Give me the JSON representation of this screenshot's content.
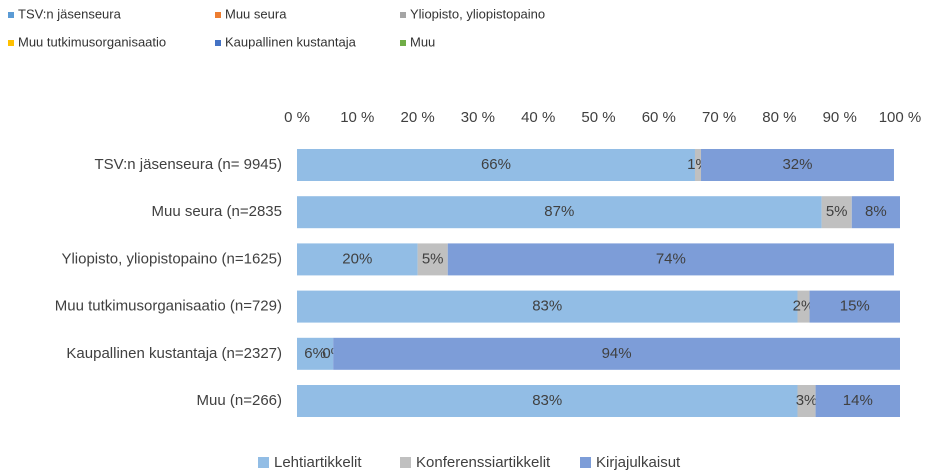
{
  "chart_data": {
    "type": "stacked_barh",
    "extra_legend": [
      {
        "name": "TSV:n jäsenseura",
        "color": "#5b9bd5"
      },
      {
        "name": "Muu seura",
        "color": "#ed7d31"
      },
      {
        "name": "Yliopisto, yliopistopaino",
        "color": "#a5a5a5"
      },
      {
        "name": "Muu tutkimusorganisaatio",
        "color": "#ffc000"
      },
      {
        "name": "Kaupallinen kustantaja",
        "color": "#4472c4"
      },
      {
        "name": "Muu",
        "color": "#70ad47"
      }
    ],
    "categories": [
      "TSV:n jäsenseura (n= 9945)",
      "Muu seura (n=2835",
      "Yliopisto, yliopistopaino (n=1625)",
      "Muu tutkimusorganisaatio (n=729)",
      "Kaupallinen kustantaja (n=2327)",
      "Muu (n=266)"
    ],
    "series": [
      {
        "name": "Lehtiartikkelit",
        "color": "#92bde5",
        "values": [
          66,
          87,
          20,
          83,
          6,
          83
        ],
        "value_labels": [
          "66%",
          "87%",
          "20%",
          "83%",
          "6%",
          "83%"
        ]
      },
      {
        "name": "Konferenssiartikkelit",
        "color": "#c0c0c0",
        "values": [
          1,
          5,
          5,
          2,
          0,
          3
        ],
        "value_labels": [
          "1%",
          "5%",
          "5%",
          "2%",
          "0%",
          "3%"
        ]
      },
      {
        "name": "Kirjajulkaisut",
        "color": "#7d9dd8",
        "values": [
          32,
          8,
          74,
          15,
          94,
          14
        ],
        "value_labels": [
          "32%",
          "8%",
          "74%",
          "15%",
          "94%",
          "14%"
        ]
      }
    ],
    "xlim": [
      0,
      100
    ],
    "xticks": [
      {
        "value": 0,
        "label": "0 %"
      },
      {
        "value": 10,
        "label": "10 %"
      },
      {
        "value": 20,
        "label": "20 %"
      },
      {
        "value": 30,
        "label": "30 %"
      },
      {
        "value": 40,
        "label": "40 %"
      },
      {
        "value": 50,
        "label": "50 %"
      },
      {
        "value": 60,
        "label": "60 %"
      },
      {
        "value": 70,
        "label": "70 %"
      },
      {
        "value": 80,
        "label": "80 %"
      },
      {
        "value": 90,
        "label": "90 %"
      },
      {
        "value": 100,
        "label": "100 %"
      }
    ],
    "grid": false,
    "legend": "bottom"
  }
}
